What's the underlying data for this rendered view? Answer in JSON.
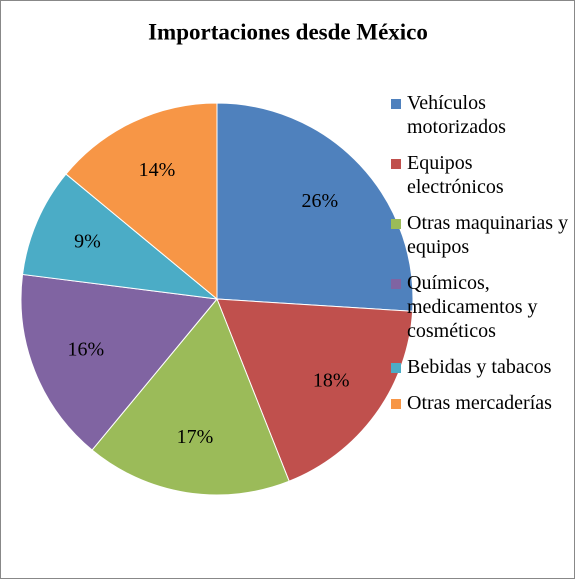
{
  "chart_data": {
    "type": "pie",
    "title": "Importaciones desde México",
    "categories": [
      "Vehículos motorizados",
      "Equipos electrónicos",
      "Otras maquinarias y equipos",
      "Químicos, medicamentos y cosméticos",
      "Bebidas y tabacos",
      "Otras mercaderías"
    ],
    "values": [
      26,
      18,
      17,
      16,
      9,
      14
    ],
    "value_labels": [
      "26%",
      "18%",
      "17%",
      "16%",
      "9%",
      "14%"
    ],
    "colors": [
      "#4f81bd",
      "#c0504d",
      "#9bbb59",
      "#8064a2",
      "#4bacc6",
      "#f79646"
    ],
    "legend": "right"
  }
}
